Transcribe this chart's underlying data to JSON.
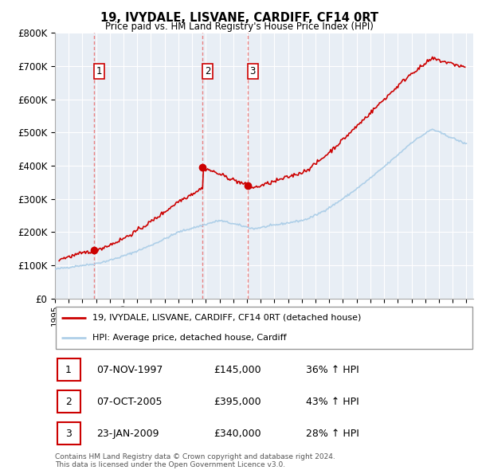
{
  "title": "19, IVYDALE, LISVANE, CARDIFF, CF14 0RT",
  "subtitle": "Price paid vs. HM Land Registry's House Price Index (HPI)",
  "ylim": [
    0,
    800000
  ],
  "yticks": [
    0,
    100000,
    200000,
    300000,
    400000,
    500000,
    600000,
    700000,
    800000
  ],
  "ytick_labels": [
    "£0",
    "£100K",
    "£200K",
    "£300K",
    "£400K",
    "£500K",
    "£600K",
    "£700K",
    "£800K"
  ],
  "xlim_start": 1995.0,
  "xlim_end": 2025.5,
  "sales": [
    {
      "year": 1997.85,
      "price": 145000,
      "label": "1"
    },
    {
      "year": 2005.77,
      "price": 395000,
      "label": "2"
    },
    {
      "year": 2009.06,
      "price": 340000,
      "label": "3"
    }
  ],
  "hpi_color": "#aecfe8",
  "sale_color": "#cc0000",
  "vline_color": "#e88080",
  "chart_bg_color": "#e8eef5",
  "background_color": "#ffffff",
  "grid_color": "#ffffff",
  "label_box_color": "#cc0000",
  "legend_entries": [
    "19, IVYDALE, LISVANE, CARDIFF, CF14 0RT (detached house)",
    "HPI: Average price, detached house, Cardiff"
  ],
  "table_entries": [
    {
      "num": "1",
      "date": "07-NOV-1997",
      "price": "£145,000",
      "hpi": "36% ↑ HPI"
    },
    {
      "num": "2",
      "date": "07-OCT-2005",
      "price": "£395,000",
      "hpi": "43% ↑ HPI"
    },
    {
      "num": "3",
      "date": "23-JAN-2009",
      "price": "£340,000",
      "hpi": "28% ↑ HPI"
    }
  ],
  "footnote": "Contains HM Land Registry data © Crown copyright and database right 2024.\nThis data is licensed under the Open Government Licence v3.0."
}
